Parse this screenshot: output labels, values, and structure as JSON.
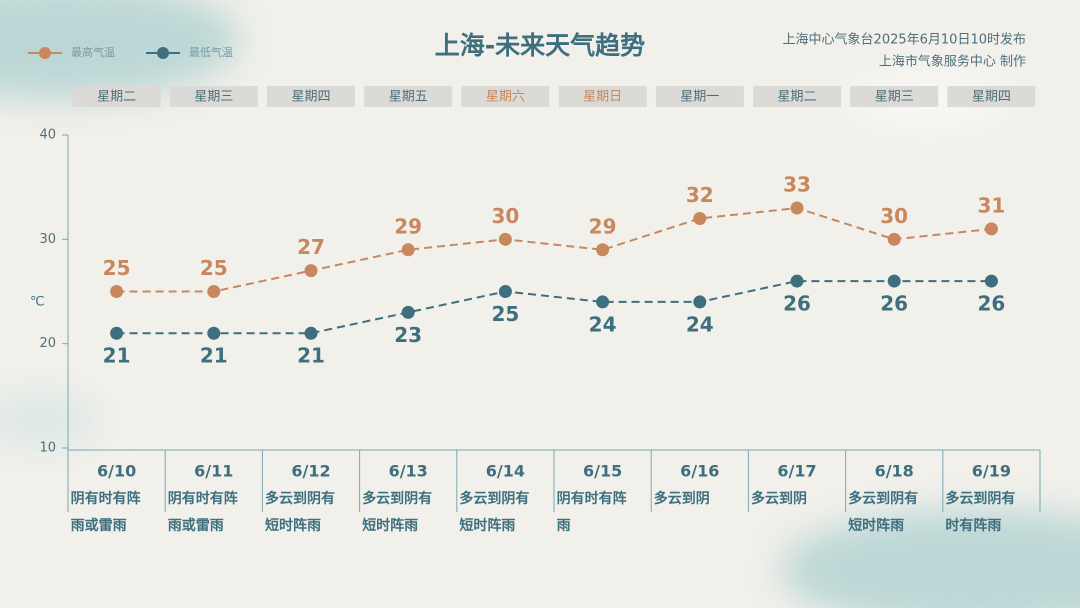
{
  "chart_data": {
    "type": "line",
    "title": "上海-未来天气趋势",
    "source": [
      "上海中心气象台2025年6月10日10时发布",
      "上海市气象服务中心 制作"
    ],
    "unit": "℃",
    "weekdays": [
      "星期二",
      "星期三",
      "星期四",
      "星期五",
      "星期六",
      "星期日",
      "星期一",
      "星期二",
      "星期三",
      "星期四"
    ],
    "weekday_colors": [
      "#4d6f7a",
      "#4d6f7a",
      "#4d6f7a",
      "#4d6f7a",
      "#c8875d",
      "#c8875d",
      "#4d6f7a",
      "#4d6f7a",
      "#4d6f7a",
      "#4d6f7a"
    ],
    "categories": [
      "6/10",
      "6/11",
      "6/12",
      "6/13",
      "6/14",
      "6/15",
      "6/16",
      "6/17",
      "6/18",
      "6/19"
    ],
    "descriptions": [
      "阴有时有阵雨或雷雨",
      "阴有时有阵雨或雷雨",
      "多云到阴有短时阵雨",
      "多云到阴有短时阵雨",
      "多云到阴有短时阵雨",
      "阴有时有阵雨",
      "多云到阴",
      "多云到阴",
      "多云到阴有短时阵雨",
      "多云到阴有时有阵雨"
    ],
    "series": [
      {
        "name": "最高气温",
        "color": "#c8875d",
        "values": [
          25,
          25,
          27,
          29,
          30,
          29,
          32,
          33,
          30,
          31
        ]
      },
      {
        "name": "最低气温",
        "color": "#3e6f7e",
        "values": [
          21,
          21,
          21,
          23,
          25,
          24,
          24,
          26,
          26,
          26
        ]
      }
    ],
    "ylim": [
      10,
      40
    ],
    "yticks": [
      10,
      20,
      30,
      40
    ]
  }
}
